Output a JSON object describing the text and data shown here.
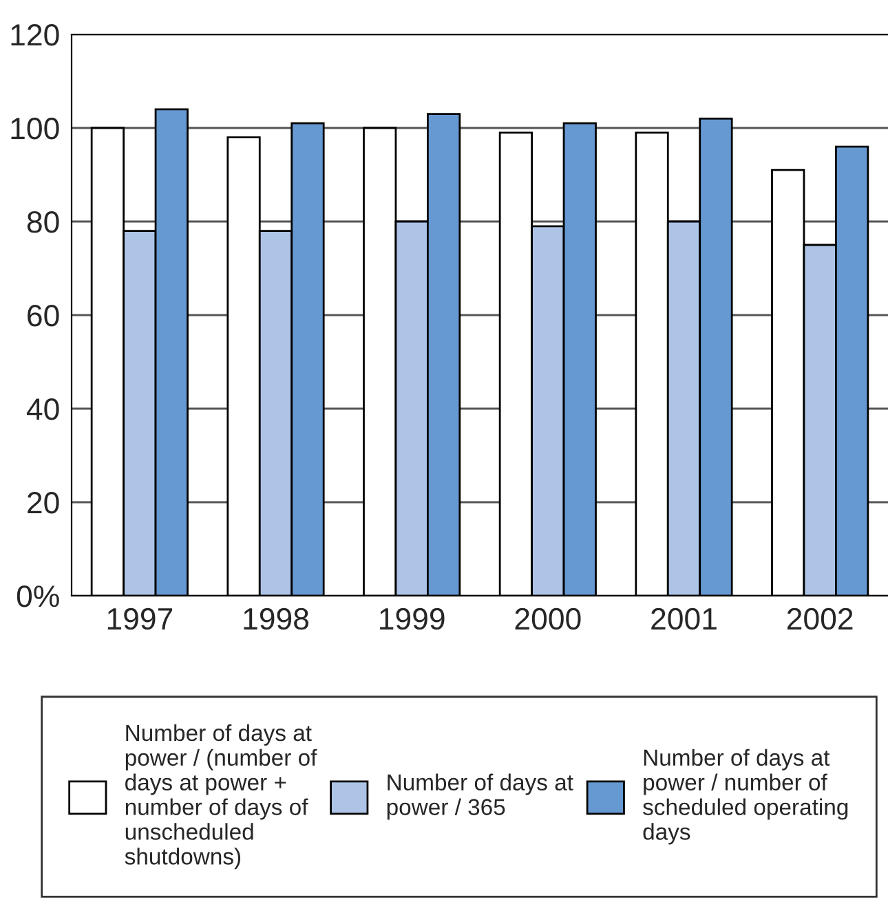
{
  "chart_data": {
    "type": "bar",
    "categories": [
      "1997",
      "1998",
      "1999",
      "2000",
      "2001",
      "2002"
    ],
    "series": [
      {
        "name": "Number of days at power / (number of days at power + number of days of unscheduled shutdowns)",
        "color": "#ffffff",
        "values": [
          100,
          98,
          100,
          99,
          99,
          91
        ]
      },
      {
        "name": "Number of days at power / 365",
        "color": "#adc4e6",
        "values": [
          78,
          78,
          80,
          79,
          80,
          75
        ]
      },
      {
        "name": "Number of days at power / number of scheduled operating days",
        "color": "#6699d2",
        "values": [
          104,
          101,
          103,
          101,
          102,
          96
        ]
      }
    ],
    "ylim": [
      0,
      120
    ],
    "yticks": [
      {
        "value": 0,
        "label": "0%"
      },
      20,
      40,
      60,
      80,
      100,
      120
    ],
    "grid": "y",
    "legend": "bottom"
  }
}
